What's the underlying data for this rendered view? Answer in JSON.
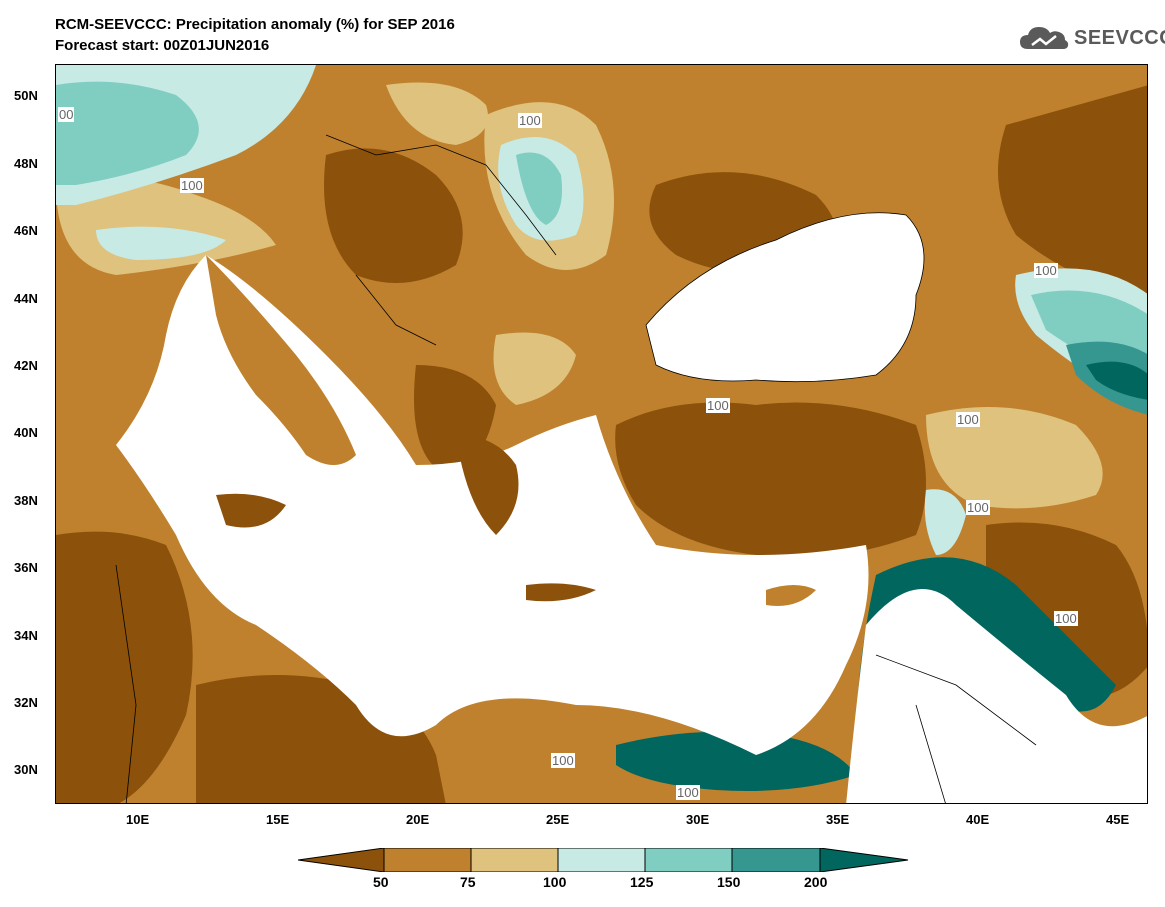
{
  "header": {
    "title_line1": "RCM-SEEVCCC: Precipitation anomaly (%) for SEP 2016",
    "title_line2": "Forecast start: 00Z01JUN2016",
    "logo_text": "SEEVCCC"
  },
  "map": {
    "lat_labels": [
      "50N",
      "48N",
      "46N",
      "44N",
      "42N",
      "40N",
      "38N",
      "36N",
      "34N",
      "32N",
      "30N"
    ],
    "lon_labels": [
      "10E",
      "15E",
      "20E",
      "25E",
      "30E",
      "35E",
      "40E",
      "45E"
    ],
    "contour_labels": [
      "00",
      "100",
      "100",
      "100",
      "100",
      "100",
      "100",
      "100",
      "100",
      "100"
    ],
    "colors": {
      "lt50": "#8c510a",
      "50_75": "#bf812d",
      "75_100": "#dfc27d",
      "100_125": "#c7eae5",
      "125_150": "#80cdc1",
      "150_200": "#35978f",
      "gt200": "#01665e",
      "sea": "#ffffff"
    }
  },
  "colorbar": {
    "labels": [
      "50",
      "75",
      "100",
      "125",
      "150",
      "200"
    ]
  }
}
